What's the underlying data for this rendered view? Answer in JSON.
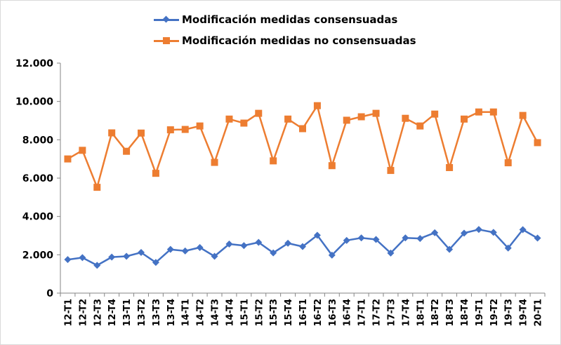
{
  "chart_data": {
    "type": "line",
    "title": "",
    "xlabel": "",
    "ylabel": "",
    "ylim": [
      0,
      12000
    ],
    "y_ticks": [
      0,
      2000,
      4000,
      6000,
      8000,
      10000,
      12000
    ],
    "y_tick_labels": [
      "0",
      "2.000",
      "4.000",
      "6.000",
      "8.000",
      "10.000",
      "12.000"
    ],
    "grid": false,
    "legend_position": "top-center",
    "categories": [
      "12-T1",
      "12-T2",
      "12-T3",
      "12-T4",
      "13-T1",
      "13-T2",
      "13-T3",
      "13-T4",
      "14-T1",
      "14-T2",
      "14-T3",
      "14-T4",
      "15-T1",
      "15-T2",
      "15-T3",
      "15-T4",
      "16-T1",
      "16-T2",
      "16-T3",
      "16-T4",
      "17-T1",
      "17-T2",
      "17-T3",
      "17-T4",
      "18-T1",
      "18-T2",
      "18-T3",
      "18-T4",
      "19-T1",
      "19-T2",
      "19-T3",
      "19-T4",
      "20-T1"
    ],
    "series": [
      {
        "name": "Modificación medidas consensuadas",
        "color": "#4472C4",
        "marker": "diamond",
        "values": [
          1750,
          1850,
          1450,
          1880,
          1920,
          2120,
          1600,
          2280,
          2200,
          2380,
          1920,
          2560,
          2480,
          2650,
          2100,
          2600,
          2430,
          3020,
          1980,
          2750,
          2880,
          2800,
          2090,
          2880,
          2850,
          3150,
          2280,
          3130,
          3320,
          3170,
          2350,
          3310,
          2870
        ]
      },
      {
        "name": "Modificación medidas no consensuadas",
        "color": "#ED7D31",
        "marker": "square",
        "values": [
          7000,
          7450,
          5520,
          8360,
          7400,
          8350,
          6250,
          8520,
          8540,
          8720,
          6820,
          9080,
          8870,
          9380,
          6900,
          9080,
          8580,
          9780,
          6650,
          9020,
          9200,
          9380,
          6400,
          9120,
          8720,
          9340,
          6550,
          9080,
          9450,
          9450,
          6800,
          9270,
          7850
        ]
      }
    ]
  }
}
